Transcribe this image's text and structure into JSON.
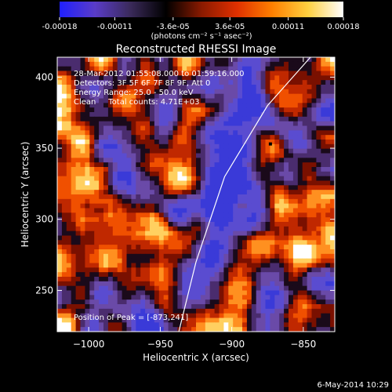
{
  "colorbar": {
    "tick_labels": [
      "-0.00018",
      "-0.00011",
      "-3.6e-05",
      "3.6e-05",
      "0.00011",
      "0.00018"
    ],
    "tick_values": [
      -0.00018,
      -0.00011,
      -3.6e-05,
      3.6e-05,
      0.00011,
      0.00018
    ],
    "range": [
      -0.00018,
      0.00018
    ],
    "units": "(photons cm⁻² s⁻¹ asec⁻²)"
  },
  "chart_data": {
    "type": "heatmap",
    "title": "Reconstructed RHESSI Image",
    "xlabel": "Heliocentric X (arcsec)",
    "ylabel": "Heliocentric Y (arcsec)",
    "xlim": [
      -1022,
      -828
    ],
    "ylim": [
      221,
      414
    ],
    "xticks": [
      {
        "value": -1000,
        "label": "−1000"
      },
      {
        "value": -950,
        "label": "−950"
      },
      {
        "value": -900,
        "label": "−900"
      },
      {
        "value": -850,
        "label": "−850"
      }
    ],
    "yticks": [
      {
        "value": 250,
        "label": "250"
      },
      {
        "value": 300,
        "label": "300"
      },
      {
        "value": 350,
        "label": "350"
      },
      {
        "value": 400,
        "label": "400"
      }
    ],
    "annotations": [
      "28-Mar-2012 01:55:08.000 to 01:59:16.000",
      "Detectors: 3F 5F 6F 7F 8F 9F, Att 0",
      "Energy Range: 25.0 - 50.0 keV",
      "Clean     Total counts: 4.71E+03"
    ],
    "peak_label": "Position of Peak = [-873,241]",
    "peak": [
      -873,
      241
    ],
    "limb_curve": [
      [
        -937,
        221
      ],
      [
        -925,
        270
      ],
      [
        -905,
        330
      ],
      [
        -875,
        380
      ],
      [
        -845,
        414
      ]
    ]
  },
  "footer_date": "6-May-2014 10:29",
  "colors": {
    "cbar_stops": [
      "#2020ff",
      "#5a3cc8",
      "#3a2a5a",
      "#000000",
      "#8a1a00",
      "#e03000",
      "#ff8000",
      "#ffd040",
      "#ffffff"
    ]
  }
}
